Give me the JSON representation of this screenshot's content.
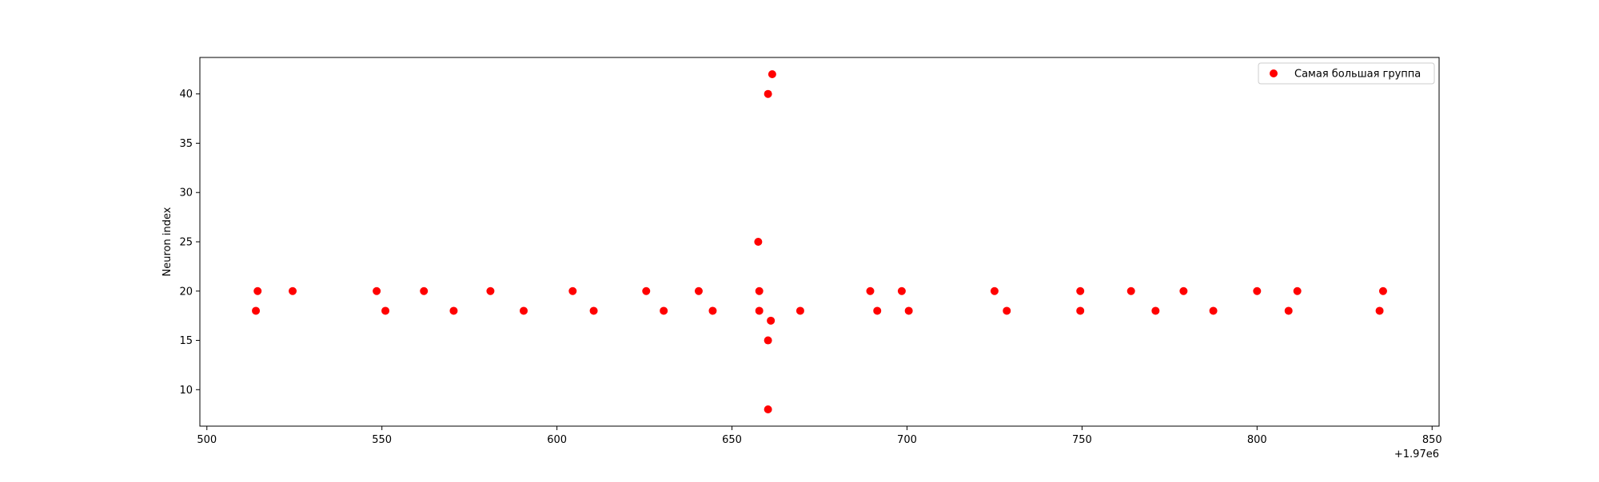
{
  "chart_data": {
    "type": "scatter",
    "title": "",
    "xlabel": "",
    "ylabel": "Neuron index",
    "x_offset_label": "+1.97e6",
    "xlim": [
      498,
      852
    ],
    "ylim": [
      6.3,
      43.7
    ],
    "x_ticks": [
      500,
      550,
      600,
      650,
      700,
      750,
      800,
      850
    ],
    "y_ticks": [
      10,
      15,
      20,
      25,
      30,
      35,
      40
    ],
    "grid": false,
    "legend_position": "upper right",
    "series": [
      {
        "name": "Самая большая группа",
        "color": "#ff0000",
        "marker": "circle",
        "x": [
          514,
          514.5,
          524.5,
          548.5,
          551,
          562,
          570.5,
          581,
          590.5,
          604.5,
          610.5,
          625.5,
          630.5,
          640.5,
          644.5,
          657.5,
          657.8,
          657.8,
          660.3,
          660.3,
          660.3,
          661.1,
          661.5,
          669.5,
          689.5,
          691.5,
          698.5,
          700.5,
          725,
          728.5,
          749.5,
          749.5,
          764,
          771,
          779,
          787.5,
          800,
          809,
          811.5,
          835,
          836
        ],
        "y": [
          18,
          20,
          20,
          20,
          18,
          20,
          18,
          20,
          18,
          20,
          18,
          20,
          18,
          20,
          18,
          25,
          20,
          18,
          40,
          15,
          8,
          17,
          42,
          18,
          20,
          18,
          20,
          18,
          20,
          18,
          20,
          18,
          20,
          18,
          20,
          18,
          20,
          18,
          20,
          18,
          20
        ]
      }
    ]
  }
}
